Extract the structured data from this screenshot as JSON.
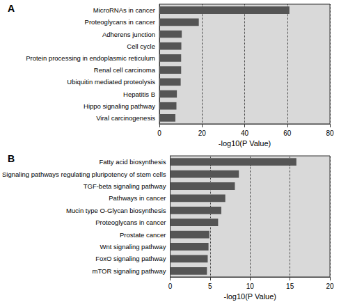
{
  "chart_data": [
    {
      "type": "bar",
      "title": "A",
      "orientation": "horizontal",
      "categories": [
        "MicroRNAs in cancer",
        "Proteoglycans in cancer",
        "Adherens junction",
        "Cell cycle",
        "Protein processing in endoplasmic reticulum",
        "Renal cell carcinoma",
        "Ubiquitin mediated proteolysis",
        "Hepatitis B",
        "Hippo signaling pathway",
        "Viral carcinogenesis"
      ],
      "values": [
        61,
        18.5,
        10.5,
        10.3,
        10.2,
        10.2,
        10,
        8.2,
        8,
        7.5
      ],
      "color": "#555555",
      "xlabel": "-log10(P Value)",
      "xlim": [
        0,
        80
      ],
      "xticks": [
        0,
        20,
        40,
        60,
        80
      ],
      "grid": true
    },
    {
      "type": "bar",
      "title": "B",
      "orientation": "horizontal",
      "categories": [
        "Fatty acid biosynthesis",
        "Signaling pathways regulating pluripotency of stem cells",
        "TGF-beta signaling pathway",
        "Pathways in cancer",
        "Mucin type O-Glycan biosynthesis",
        "Proteoglycans in cancer",
        "Prostate cancer",
        "Wnt signaling pathway",
        "FoxO signaling pathway",
        "mTOR signaling pathway"
      ],
      "values": [
        15.8,
        8.6,
        8.1,
        6.9,
        6.4,
        6.0,
        4.9,
        4.8,
        4.7,
        4.6
      ],
      "color": "#555555",
      "xlabel": "-log10(P Value)",
      "xlim": [
        0,
        20
      ],
      "xticks": [
        0,
        5,
        10,
        15,
        20
      ],
      "grid": true
    }
  ]
}
